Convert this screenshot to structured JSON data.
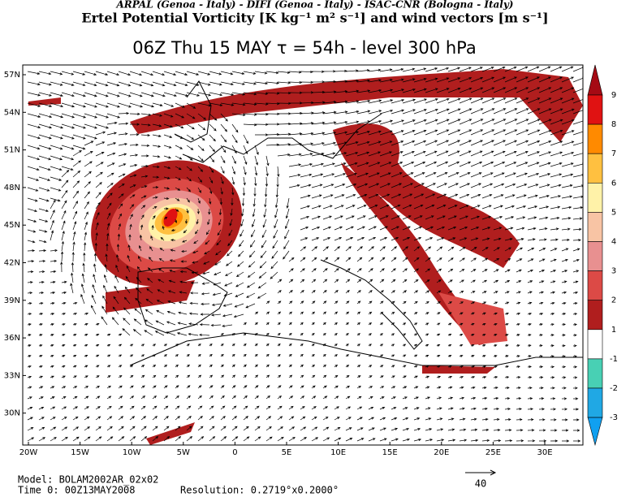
{
  "header": {
    "credits": "ARPAL (Genoa - Italy)  -  DIFI (Genoa - Italy)  -  ISAC-CNR (Bologna - Italy)",
    "field": "Ertel Potential Vorticity [K kg⁻¹ m² s⁻¹] and wind vectors [m s⁻¹]",
    "title": "06Z Thu 15 MAY   τ = 54h   -   level 300 hPa"
  },
  "map": {
    "lat_labels": [
      "57N",
      "54N",
      "51N",
      "48N",
      "45N",
      "42N",
      "39N",
      "36N",
      "33N",
      "30N"
    ],
    "lon_labels": [
      "20W",
      "15W",
      "10W",
      "5W",
      "0",
      "5E",
      "10E",
      "15E",
      "20E",
      "25E",
      "30E"
    ]
  },
  "colorbar": {
    "levels": [
      9,
      8,
      7,
      6,
      5,
      4,
      3,
      2,
      1,
      -1,
      -2,
      -3
    ],
    "colors": [
      "#a50a14",
      "#e01212",
      "#ff8a00",
      "#ffc040",
      "#fff2a8",
      "#f8c4a4",
      "#e89090",
      "#dc4a46",
      "#b01e1e",
      "#ffffff",
      "#48d0b4",
      "#20a8e4",
      "#10a0f0"
    ]
  },
  "footer": {
    "model": "Model: BOLAM2002AR_02x02",
    "time": "Time 0: 00Z13MAY2008",
    "resolution": "Resolution: 0.2719°x0.2000°",
    "reference_vector": "40"
  }
}
